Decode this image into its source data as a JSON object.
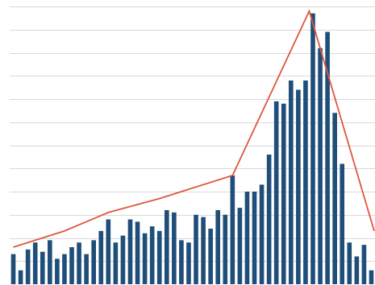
{
  "chart_data": {
    "type": "bar",
    "title": "",
    "xlabel": "",
    "ylabel": "",
    "ylim": [
      0,
      12
    ],
    "grid": true,
    "gridlines": [
      1,
      2,
      3,
      4,
      5,
      6,
      7,
      8,
      9,
      10,
      11,
      12
    ],
    "colors": {
      "bars": "#1f4e79",
      "line": "#e0563b",
      "grid": "#d9d9d9",
      "background": "#ffffff"
    },
    "series": [
      {
        "kind": "bar",
        "values": [
          1.3,
          0.6,
          1.5,
          1.8,
          1.4,
          1.9,
          1.1,
          1.3,
          1.6,
          1.8,
          1.3,
          1.9,
          2.3,
          2.8,
          1.8,
          2.1,
          2.8,
          2.7,
          2.2,
          2.5,
          2.3,
          3.2,
          3.1,
          1.9,
          1.8,
          3.0,
          2.9,
          2.4,
          3.2,
          3.0,
          4.7,
          3.3,
          4.0,
          4.0,
          4.3,
          5.6,
          7.9,
          7.8,
          8.8,
          8.4,
          8.8,
          11.7,
          10.2,
          10.9,
          7.4,
          5.2,
          1.8,
          1.2,
          1.7,
          0.6
        ]
      },
      {
        "kind": "line",
        "points": [
          [
            0,
            1.6
          ],
          [
            7,
            2.3
          ],
          [
            13,
            3.1
          ],
          [
            20,
            3.7
          ],
          [
            30,
            4.7
          ],
          [
            40.5,
            11.8
          ],
          [
            49.5,
            2.3
          ]
        ]
      }
    ]
  }
}
